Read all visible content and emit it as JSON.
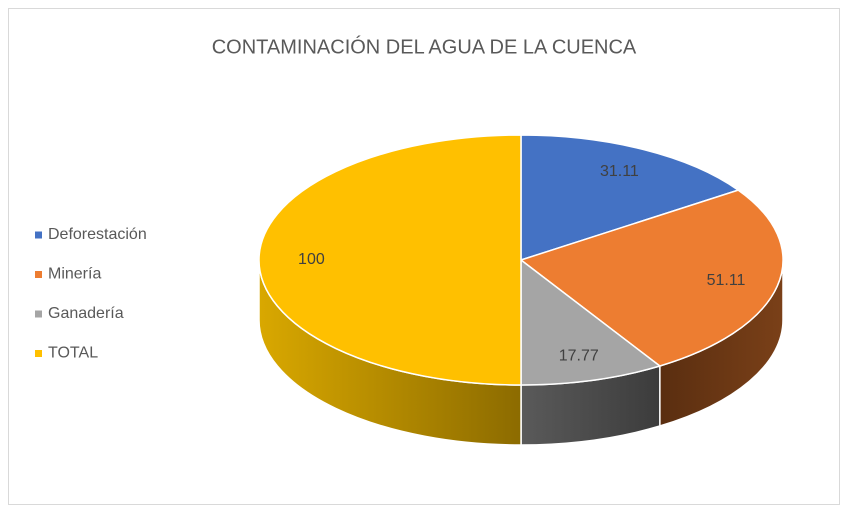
{
  "chart_data": {
    "type": "pie",
    "title": "CONTAMINACIÓN DEL AGUA DE LA CUENCA",
    "categories": [
      "Deforestación",
      "Minería",
      "Ganadería",
      "TOTAL"
    ],
    "values": [
      31.11,
      51.11,
      17.77,
      100
    ],
    "colors": [
      "#4472c4",
      "#ed7d31",
      "#a5a5a5",
      "#ffc000"
    ],
    "legend": "left"
  }
}
